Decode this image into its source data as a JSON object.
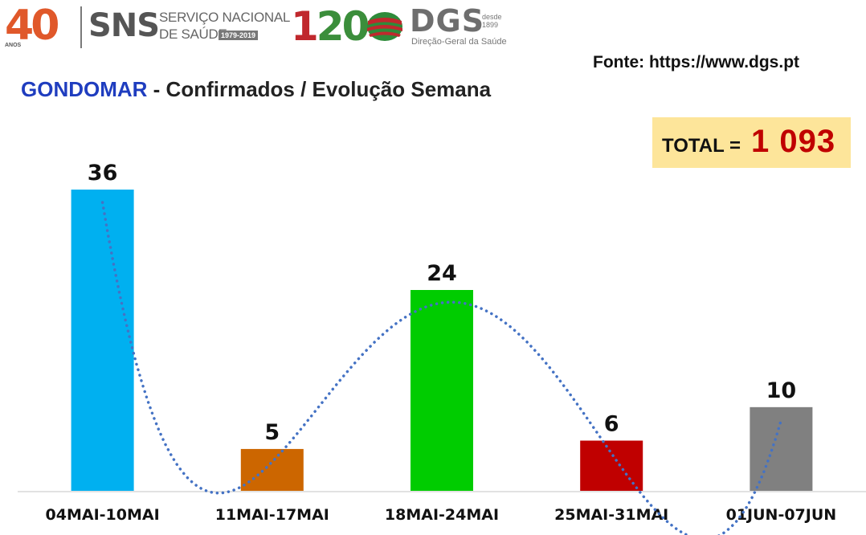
{
  "header": {
    "logo_40_number_a": "4",
    "logo_40_number_b": "0",
    "logo_40_sub": "ANOS",
    "sns_title": "SNS",
    "sns_line1": "SERVIÇO NACIONAL",
    "sns_line2": "DE SAÚDE",
    "sns_years": "1979-2019",
    "logo_120_a": "1",
    "logo_120_b": "20",
    "dgs_title": "DGS",
    "dgs_desde": "desde",
    "dgs_year": "1899",
    "dgs_sub": "Direção-Geral da Saúde"
  },
  "source": "Fonte: https://www.dgs.pt",
  "title": {
    "place": "GONDOMAR",
    "rest": " - Confirmados / Evolução Semana"
  },
  "total": {
    "label": "TOTAL = ",
    "value": "1 093"
  },
  "colors": {
    "title_place": "#1f3dbf",
    "total_value": "#c00000",
    "total_box": "#fde59a",
    "trendline": "#4472c4"
  },
  "chart_data": {
    "type": "bar",
    "title": "GONDOMAR - Confirmados / Evolução Semana",
    "categories": [
      "04MAI-10MAI",
      "11MAI-17MAI",
      "18MAI-24MAI",
      "25MAI-31MAI",
      "01JUN-07JUN"
    ],
    "values": [
      36,
      5,
      24,
      6,
      10
    ],
    "bar_colors": [
      "#00b0f0",
      "#cc6600",
      "#00cc00",
      "#c00000",
      "#808080"
    ],
    "data_labels": [
      "36",
      "5",
      "24",
      "6",
      "10"
    ],
    "trendline": "polynomial, dotted",
    "ylim": [
      0,
      36
    ],
    "grid": false,
    "legend": "none"
  }
}
